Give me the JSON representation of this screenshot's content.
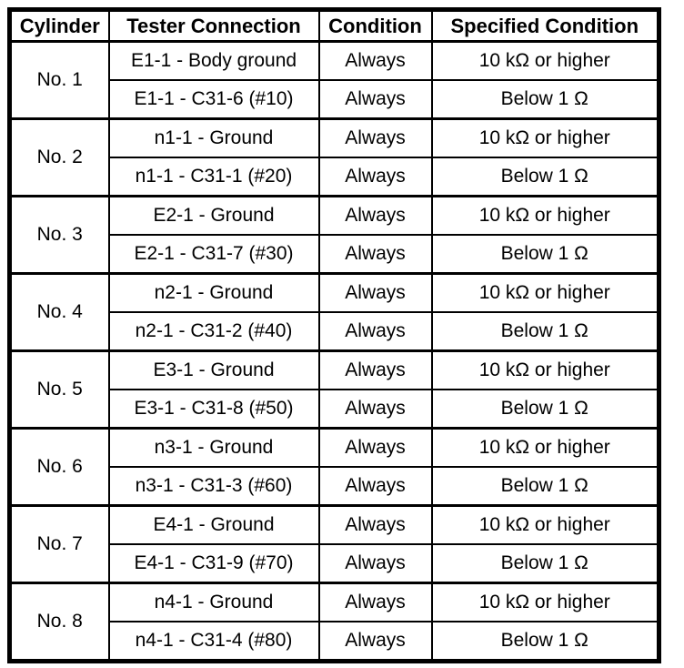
{
  "colors": {
    "border": "#000000",
    "background": "#ffffff",
    "text": "#000000"
  },
  "table": {
    "headers": [
      "Cylinder",
      "Tester Connection",
      "Condition",
      "Specified Condition"
    ],
    "groups": [
      {
        "cylinder": "No. 1",
        "rows": [
          {
            "tester_connection": "E1-1 - Body ground",
            "condition": "Always",
            "specified_condition": "10 kΩ or higher"
          },
          {
            "tester_connection": "E1-1 - C31-6 (#10)",
            "condition": "Always",
            "specified_condition": "Below 1 Ω"
          }
        ]
      },
      {
        "cylinder": "No. 2",
        "rows": [
          {
            "tester_connection": "n1-1 - Ground",
            "condition": "Always",
            "specified_condition": "10 kΩ or higher"
          },
          {
            "tester_connection": "n1-1 - C31-1 (#20)",
            "condition": "Always",
            "specified_condition": "Below 1 Ω"
          }
        ]
      },
      {
        "cylinder": "No. 3",
        "rows": [
          {
            "tester_connection": "E2-1 - Ground",
            "condition": "Always",
            "specified_condition": "10 kΩ or higher"
          },
          {
            "tester_connection": "E2-1 - C31-7 (#30)",
            "condition": "Always",
            "specified_condition": "Below 1 Ω"
          }
        ]
      },
      {
        "cylinder": "No. 4",
        "rows": [
          {
            "tester_connection": "n2-1 - Ground",
            "condition": "Always",
            "specified_condition": "10 kΩ or higher"
          },
          {
            "tester_connection": "n2-1 - C31-2 (#40)",
            "condition": "Always",
            "specified_condition": "Below 1 Ω"
          }
        ]
      },
      {
        "cylinder": "No. 5",
        "rows": [
          {
            "tester_connection": "E3-1 - Ground",
            "condition": "Always",
            "specified_condition": "10 kΩ or higher"
          },
          {
            "tester_connection": "E3-1 - C31-8 (#50)",
            "condition": "Always",
            "specified_condition": "Below 1 Ω"
          }
        ]
      },
      {
        "cylinder": "No. 6",
        "rows": [
          {
            "tester_connection": "n3-1 - Ground",
            "condition": "Always",
            "specified_condition": "10 kΩ or higher"
          },
          {
            "tester_connection": "n3-1 - C31-3 (#60)",
            "condition": "Always",
            "specified_condition": "Below 1 Ω"
          }
        ]
      },
      {
        "cylinder": "No. 7",
        "rows": [
          {
            "tester_connection": "E4-1 - Ground",
            "condition": "Always",
            "specified_condition": "10 kΩ or higher"
          },
          {
            "tester_connection": "E4-1 - C31-9 (#70)",
            "condition": "Always",
            "specified_condition": "Below 1 Ω"
          }
        ]
      },
      {
        "cylinder": "No. 8",
        "rows": [
          {
            "tester_connection": "n4-1 - Ground",
            "condition": "Always",
            "specified_condition": "10 kΩ or higher"
          },
          {
            "tester_connection": "n4-1 - C31-4 (#80)",
            "condition": "Always",
            "specified_condition": "Below 1 Ω"
          }
        ]
      }
    ]
  }
}
